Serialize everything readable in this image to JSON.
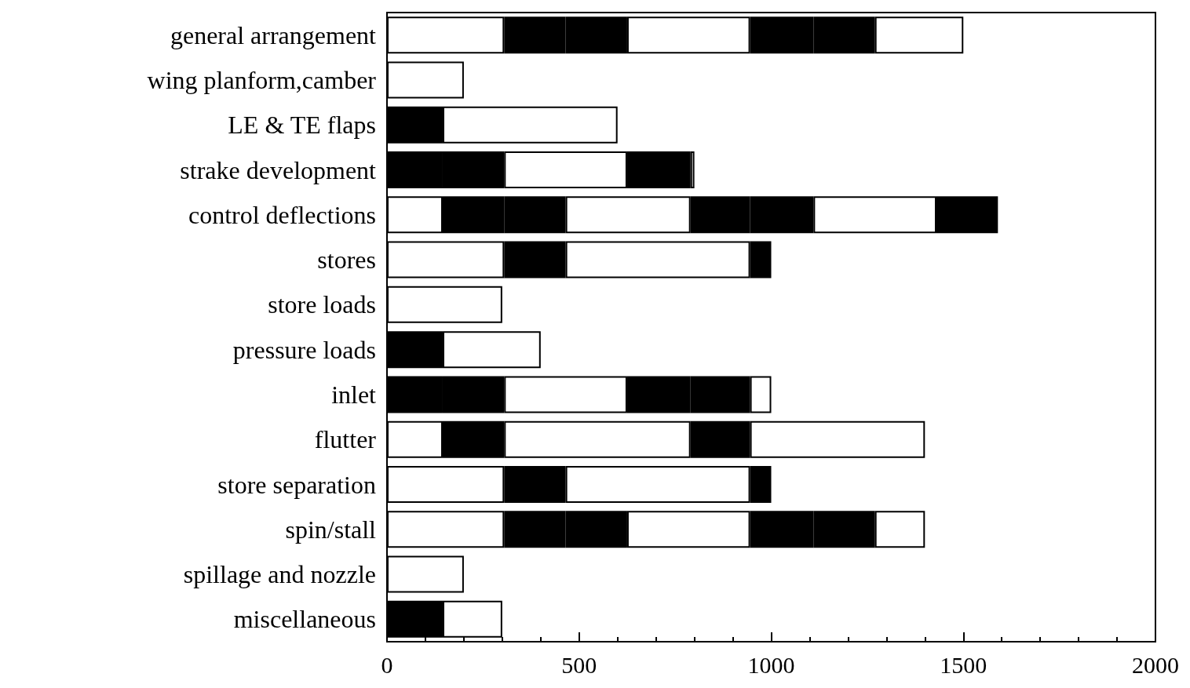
{
  "chart_data": {
    "type": "bar",
    "orientation": "horizontal",
    "stacked": true,
    "categories": [
      "general arrangement",
      "wing planform,camber",
      "LE & TE flaps",
      "strake development",
      "control deflections",
      "stores",
      "store loads",
      "pressure loads",
      "inlet",
      "flutter",
      "store separation",
      "spin/stall",
      "spillage and nozzle",
      "miscellaneous"
    ],
    "series": [
      {
        "values": [
          305,
          200,
          145,
          145,
          145,
          305,
          300,
          145,
          145,
          145,
          305,
          305,
          200,
          145
        ],
        "colors": [
          "#ffffff",
          "#ffffff",
          "#000000",
          "#000000",
          "#ffffff",
          "#ffffff",
          "#ffffff",
          "#000000",
          "#000000",
          "#ffffff",
          "#ffffff",
          "#ffffff",
          "#ffffff",
          "#000000"
        ]
      },
      {
        "values": [
          160,
          null,
          455,
          160,
          160,
          160,
          null,
          255,
          160,
          160,
          160,
          160,
          null,
          155
        ],
        "colors": [
          "#000000",
          null,
          "#ffffff",
          "#000000",
          "#000000",
          "#000000",
          null,
          "#ffffff",
          "#000000",
          "#000000",
          "#000000",
          "#000000",
          null,
          "#ffffff"
        ]
      },
      {
        "values": [
          160,
          null,
          null,
          320,
          160,
          480,
          null,
          null,
          320,
          485,
          480,
          160,
          null,
          null
        ],
        "colors": [
          "#000000",
          null,
          null,
          "#ffffff",
          "#000000",
          "#ffffff",
          null,
          null,
          "#ffffff",
          "#ffffff",
          "#ffffff",
          "#000000",
          null,
          null
        ]
      },
      {
        "values": [
          320,
          null,
          null,
          165,
          325,
          55,
          null,
          null,
          165,
          155,
          55,
          320,
          null,
          null
        ],
        "colors": [
          "#ffffff",
          null,
          null,
          "#000000",
          "#ffffff",
          "#000000",
          null,
          null,
          "#000000",
          "#000000",
          "#000000",
          "#ffffff",
          null,
          null
        ]
      },
      {
        "values": [
          165,
          null,
          null,
          10,
          155,
          null,
          null,
          null,
          155,
          455,
          null,
          165,
          null,
          null
        ],
        "colors": [
          "#000000",
          null,
          null,
          "#ffffff",
          "#000000",
          null,
          null,
          null,
          "#000000",
          "#ffffff",
          null,
          "#000000",
          null,
          null
        ]
      },
      {
        "values": [
          160,
          null,
          null,
          null,
          165,
          null,
          null,
          null,
          55,
          null,
          null,
          160,
          null,
          null
        ],
        "colors": [
          "#000000",
          null,
          null,
          null,
          "#000000",
          null,
          null,
          null,
          "#ffffff",
          null,
          null,
          "#000000",
          null,
          null
        ]
      },
      {
        "values": [
          230,
          null,
          null,
          null,
          320,
          null,
          null,
          null,
          null,
          null,
          null,
          130,
          null,
          null
        ],
        "colors": [
          "#ffffff",
          null,
          null,
          null,
          "#ffffff",
          null,
          null,
          null,
          null,
          null,
          null,
          "#ffffff",
          null,
          null
        ]
      },
      {
        "values": [
          null,
          null,
          null,
          null,
          160,
          null,
          null,
          null,
          null,
          null,
          null,
          null,
          null,
          null
        ],
        "colors": [
          null,
          null,
          null,
          null,
          "#000000",
          null,
          null,
          null,
          null,
          null,
          null,
          null,
          null,
          null
        ]
      }
    ],
    "xlim": [
      0,
      2000
    ],
    "xticks": [
      0,
      500,
      1000,
      1500,
      2000
    ]
  }
}
